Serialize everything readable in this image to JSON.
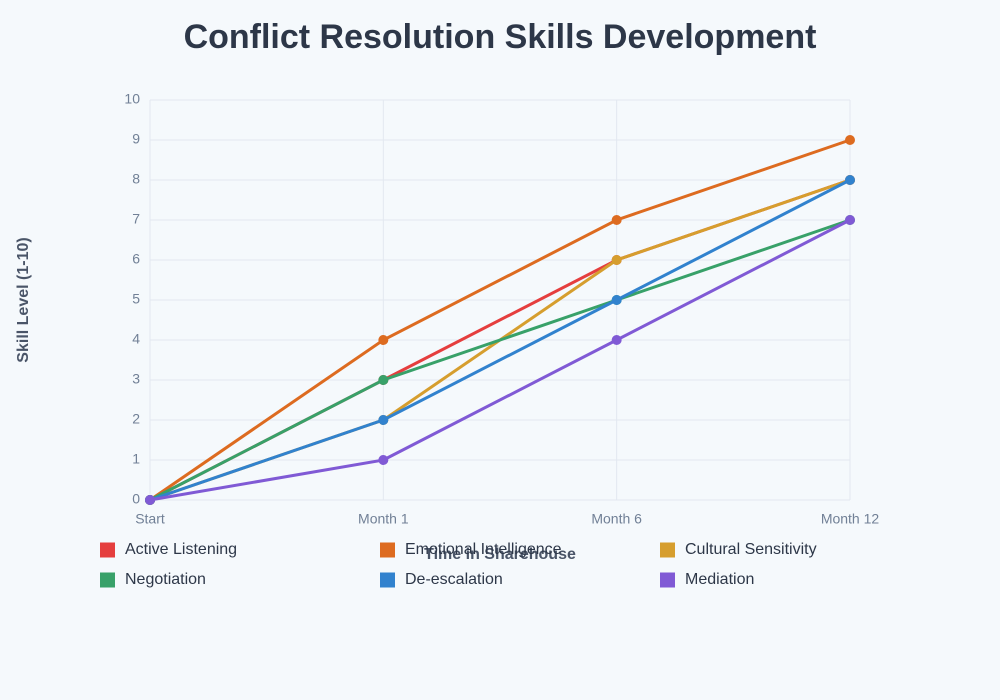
{
  "chart_data": {
    "type": "line",
    "title": "Conflict Resolution Skills Development",
    "x_label": "Time in Sharehouse",
    "y_label": "Skill Level (1-10)",
    "categories": [
      "Start",
      "Month 1",
      "Month 6",
      "Month 12"
    ],
    "series": [
      {
        "name": "Active Listening",
        "color": "#e53e3e",
        "values": [
          0,
          3,
          6,
          8
        ]
      },
      {
        "name": "Emotional Intelligence",
        "color": "#dd6b20",
        "values": [
          0,
          4,
          7,
          9
        ]
      },
      {
        "name": "Cultural Sensitivity",
        "color": "#d69e2e",
        "values": [
          0,
          2,
          6,
          8
        ]
      },
      {
        "name": "Negotiation",
        "color": "#38a169",
        "values": [
          0,
          3,
          5,
          7
        ]
      },
      {
        "name": "De-escalation",
        "color": "#3182ce",
        "values": [
          0,
          2,
          5,
          8
        ]
      },
      {
        "name": "Mediation",
        "color": "#805ad5",
        "values": [
          0,
          1,
          4,
          7
        ]
      }
    ],
    "ylim": [
      0,
      10
    ],
    "yticks": [
      0,
      1,
      2,
      3,
      4,
      5,
      6,
      7,
      8,
      9,
      10
    ],
    "grid": true
  }
}
